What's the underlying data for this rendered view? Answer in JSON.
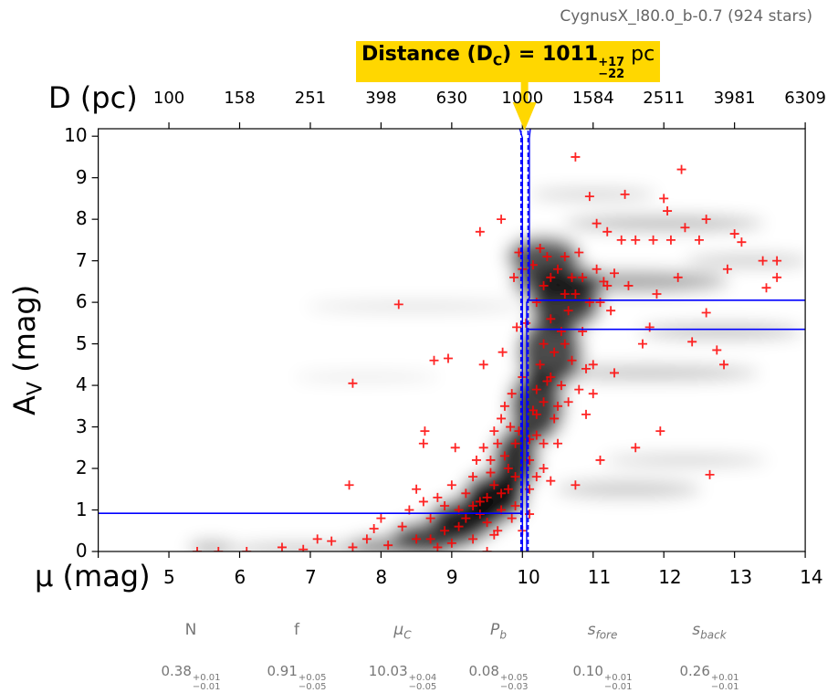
{
  "title": "CygnusX_l80.0_b-0.7 (924 stars)",
  "banner": {
    "label": "Distance (D",
    "sub": "C",
    "close": ") = 1011",
    "plus": "+17",
    "minus": "−22",
    "unit": "pc"
  },
  "params": [
    {
      "name": "N",
      "sub": "",
      "value": "0.38",
      "plus": "+0.01",
      "minus": "−0.01"
    },
    {
      "name": "f",
      "sub": "",
      "value": "0.91",
      "plus": "+0.05",
      "minus": "−0.05"
    },
    {
      "name": "μ",
      "sub": "C",
      "value": "10.03",
      "plus": "+0.04",
      "minus": "−0.05"
    },
    {
      "name": "P",
      "sub": "b",
      "value": "0.08",
      "plus": "+0.05",
      "minus": "−0.03"
    },
    {
      "name": "s",
      "sub": "fore",
      "value": "0.10",
      "plus": "+0.01",
      "minus": "−0.01"
    },
    {
      "name": "s",
      "sub": "back",
      "value": "0.26",
      "plus": "+0.01",
      "minus": "−0.01"
    }
  ],
  "colors": {
    "points": "#ff0000",
    "model": "#0000ff",
    "banner": "#ffd700"
  },
  "chart_data": {
    "type": "scatter",
    "title": "CygnusX_l80.0_b-0.7 (924 stars)",
    "xlabel": "μ (mag)",
    "ylabel_main": "A",
    "ylabel_sub": "V",
    "ylabel_unit": " (mag)",
    "top_xlabel": "D (pc)",
    "xlim": [
      4,
      14
    ],
    "ylim": [
      0,
      10.18
    ],
    "xticks": [
      5,
      6,
      7,
      8,
      9,
      10,
      11,
      12,
      13,
      14
    ],
    "yticks": [
      0,
      1,
      2,
      3,
      4,
      5,
      6,
      7,
      8,
      9,
      10
    ],
    "top_ticks": [
      {
        "mu": 5,
        "label": "100"
      },
      {
        "mu": 6,
        "label": "158"
      },
      {
        "mu": 7,
        "label": "251"
      },
      {
        "mu": 8,
        "label": "398"
      },
      {
        "mu": 9,
        "label": "630"
      },
      {
        "mu": 10,
        "label": "1000"
      },
      {
        "mu": 11,
        "label": "1584"
      },
      {
        "mu": 12,
        "label": "2511"
      },
      {
        "mu": 13,
        "label": "3981"
      },
      {
        "mu": 14,
        "label": "6309"
      }
    ],
    "distance_mu": 10.03,
    "model": {
      "foreground_av": 0.92,
      "background_av": [
        5.35,
        6.05
      ],
      "mu_c": 10.03,
      "mu_c_dashed": [
        9.98,
        10.08
      ],
      "mu_c_solid": [
        10.0,
        10.06
      ]
    },
    "points": [
      [
        5.4,
        0
      ],
      [
        5.7,
        0
      ],
      [
        6.1,
        0
      ],
      [
        6.6,
        0.1
      ],
      [
        6.9,
        0.05
      ],
      [
        7.1,
        0.3
      ],
      [
        7.3,
        0.25
      ],
      [
        7.6,
        0.1
      ],
      [
        7.8,
        0.3
      ],
      [
        7.9,
        0.55
      ],
      [
        8.0,
        0.8
      ],
      [
        8.1,
        0.15
      ],
      [
        8.3,
        0.6
      ],
      [
        8.4,
        1.0
      ],
      [
        8.5,
        1.5
      ],
      [
        8.6,
        1.2
      ],
      [
        8.6,
        2.6
      ],
      [
        8.62,
        2.9
      ],
      [
        8.7,
        0.8
      ],
      [
        8.8,
        1.3
      ],
      [
        8.9,
        1.1
      ],
      [
        9.0,
        1.6
      ],
      [
        9.05,
        2.5
      ],
      [
        9.1,
        0.6
      ],
      [
        9.2,
        1.4
      ],
      [
        9.3,
        1.8
      ],
      [
        9.35,
        2.2
      ],
      [
        9.4,
        0.9
      ],
      [
        9.45,
        2.5
      ],
      [
        9.5,
        1.3
      ],
      [
        9.55,
        1.9
      ],
      [
        9.6,
        2.9
      ],
      [
        9.65,
        0.5
      ],
      [
        9.7,
        3.2
      ],
      [
        9.72,
        4.8
      ],
      [
        9.75,
        2.3
      ],
      [
        9.8,
        1.5
      ],
      [
        9.85,
        3.8
      ],
      [
        9.9,
        2.6
      ],
      [
        9.88,
        6.6
      ],
      [
        9.92,
        5.4
      ],
      [
        9.95,
        7.2
      ],
      [
        9.7,
        8.0
      ],
      [
        9.4,
        7.7
      ],
      [
        9.83,
        3.0
      ],
      [
        10.0,
        0.5
      ],
      [
        10.1,
        1.5
      ],
      [
        10.15,
        3.4
      ],
      [
        10.2,
        2.8
      ],
      [
        10.25,
        4.5
      ],
      [
        10.3,
        6.4
      ],
      [
        10.35,
        7.1
      ],
      [
        10.4,
        5.6
      ],
      [
        10.45,
        3.2
      ],
      [
        10.5,
        6.8
      ],
      [
        10.55,
        4.0
      ],
      [
        10.6,
        5.0
      ],
      [
        10.65,
        3.6
      ],
      [
        10.7,
        6.6
      ],
      [
        10.75,
        9.5
      ],
      [
        10.75,
        1.6
      ],
      [
        10.8,
        7.2
      ],
      [
        10.85,
        5.3
      ],
      [
        10.9,
        4.4
      ],
      [
        10.95,
        8.55
      ],
      [
        11.0,
        3.8
      ],
      [
        11.05,
        7.9
      ],
      [
        11.1,
        2.2
      ],
      [
        11.15,
        6.5
      ],
      [
        11.2,
        7.7
      ],
      [
        11.25,
        5.8
      ],
      [
        11.3,
        4.3
      ],
      [
        11.4,
        7.5
      ],
      [
        11.45,
        8.6
      ],
      [
        11.5,
        6.4
      ],
      [
        11.6,
        2.5
      ],
      [
        11.6,
        7.5
      ],
      [
        11.7,
        5.0
      ],
      [
        11.8,
        5.4
      ],
      [
        11.85,
        7.5
      ],
      [
        11.9,
        6.2
      ],
      [
        11.95,
        2.9
      ],
      [
        12.0,
        8.5
      ],
      [
        12.05,
        8.2
      ],
      [
        12.1,
        7.5
      ],
      [
        12.2,
        6.6
      ],
      [
        12.25,
        9.2
      ],
      [
        12.3,
        7.8
      ],
      [
        12.4,
        5.05
      ],
      [
        12.5,
        7.5
      ],
      [
        12.6,
        8.0
      ],
      [
        12.6,
        5.75
      ],
      [
        12.65,
        1.85
      ],
      [
        12.75,
        4.85
      ],
      [
        12.85,
        4.5
      ],
      [
        12.9,
        6.8
      ],
      [
        13.0,
        7.65
      ],
      [
        13.1,
        7.45
      ],
      [
        13.4,
        7.0
      ],
      [
        13.45,
        6.35
      ],
      [
        13.6,
        7.0
      ],
      [
        13.6,
        6.6
      ],
      [
        8.25,
        5.95
      ],
      [
        7.6,
        4.05
      ],
      [
        7.55,
        1.6
      ],
      [
        8.75,
        4.6
      ],
      [
        8.95,
        4.65
      ],
      [
        9.45,
        4.5
      ],
      [
        10.0,
        6.8
      ],
      [
        10.05,
        5.5
      ],
      [
        10.2,
        6.0
      ],
      [
        10.3,
        5.0
      ],
      [
        10.4,
        4.2
      ],
      [
        10.6,
        6.2
      ],
      [
        10.5,
        2.6
      ],
      [
        10.3,
        2.0
      ],
      [
        10.1,
        2.2
      ],
      [
        9.9,
        1.1
      ],
      [
        9.6,
        0.4
      ],
      [
        9.3,
        0.3
      ],
      [
        9.0,
        0.2
      ],
      [
        8.8,
        0.1
      ],
      [
        8.5,
        0.3
      ],
      [
        9.5,
        0.0
      ],
      [
        10.1,
        0.9
      ],
      [
        10.4,
        1.7
      ],
      [
        10.0,
        4.2
      ],
      [
        10.2,
        3.9
      ],
      [
        9.2,
        0.8
      ],
      [
        9.4,
        1.2
      ],
      [
        9.6,
        1.6
      ],
      [
        9.7,
        1.0
      ],
      [
        9.8,
        2.0
      ],
      [
        9.9,
        1.8
      ],
      [
        9.95,
        2.9
      ],
      [
        10.1,
        2.7
      ],
      [
        10.2,
        3.3
      ],
      [
        10.3,
        3.6
      ],
      [
        10.35,
        4.1
      ],
      [
        10.45,
        4.8
      ],
      [
        10.55,
        5.3
      ],
      [
        10.65,
        5.8
      ],
      [
        10.75,
        6.2
      ],
      [
        10.85,
        6.6
      ],
      [
        10.95,
        6.0
      ],
      [
        11.05,
        6.8
      ],
      [
        11.1,
        6.0
      ],
      [
        11.2,
        6.4
      ],
      [
        11.3,
        6.7
      ],
      [
        10.6,
        7.1
      ],
      [
        10.4,
        6.6
      ],
      [
        10.25,
        7.3
      ],
      [
        10.15,
        6.9
      ],
      [
        10.7,
        4.6
      ],
      [
        10.8,
        3.9
      ],
      [
        10.9,
        3.3
      ],
      [
        11.0,
        4.5
      ],
      [
        10.5,
        3.5
      ],
      [
        10.3,
        2.6
      ],
      [
        10.2,
        1.8
      ],
      [
        9.1,
        1.0
      ],
      [
        8.9,
        0.5
      ],
      [
        8.7,
        0.3
      ],
      [
        9.3,
        1.1
      ],
      [
        9.5,
        0.7
      ],
      [
        9.7,
        1.4
      ],
      [
        9.85,
        0.8
      ],
      [
        9.55,
        2.2
      ],
      [
        9.65,
        2.6
      ],
      [
        9.75,
        3.5
      ]
    ]
  }
}
